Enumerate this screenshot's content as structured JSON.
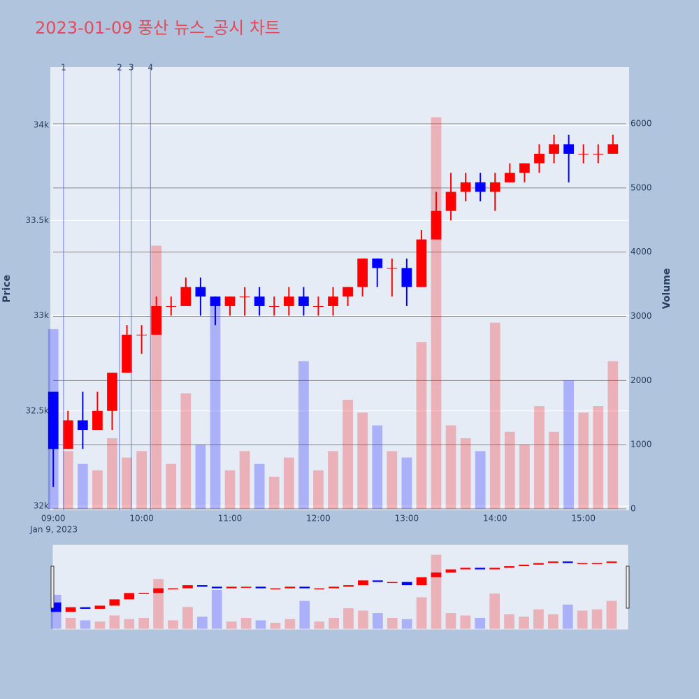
{
  "chart_data": {
    "type": "candlestick",
    "title": "2023-01-09 풍산 뉴스_공시 차트",
    "y_title": "Price",
    "y2_title": "Volume",
    "x_date_label": "Jan 9, 2023",
    "up_color": "#ff0000",
    "down_color": "#0000ff",
    "x": [
      "09:00",
      "09:10",
      "09:20",
      "09:30",
      "09:40",
      "09:50",
      "10:00",
      "10:10",
      "10:20",
      "10:30",
      "10:40",
      "10:50",
      "11:00",
      "11:10",
      "11:20",
      "11:30",
      "11:40",
      "11:50",
      "12:00",
      "12:10",
      "12:20",
      "12:30",
      "12:40",
      "12:50",
      "13:00",
      "13:10",
      "13:20",
      "13:30",
      "13:40",
      "13:50",
      "14:00",
      "14:10",
      "14:20",
      "14:30",
      "14:40",
      "14:50",
      "15:00",
      "15:10",
      "15:20"
    ],
    "open": [
      32600,
      32300,
      32450,
      32400,
      32500,
      32700,
      32900,
      32900,
      33050,
      33050,
      33150,
      33100,
      33050,
      33100,
      33100,
      33050,
      33050,
      33100,
      33050,
      33050,
      33100,
      33150,
      33300,
      33250,
      33250,
      33150,
      33400,
      33550,
      33650,
      33700,
      33650,
      33700,
      33750,
      33800,
      33850,
      33900,
      33850,
      33850,
      33850
    ],
    "high": [
      32600,
      32500,
      32600,
      32600,
      32700,
      32950,
      32950,
      33100,
      33100,
      33200,
      33200,
      33100,
      33100,
      33150,
      33150,
      33100,
      33150,
      33150,
      33100,
      33150,
      33150,
      33300,
      33300,
      33300,
      33300,
      33450,
      33650,
      33750,
      33750,
      33750,
      33750,
      33800,
      33800,
      33900,
      33950,
      33950,
      33900,
      33900,
      33950
    ],
    "low": [
      32100,
      32300,
      32300,
      32400,
      32400,
      32700,
      32800,
      32900,
      33000,
      33050,
      33000,
      32950,
      33000,
      33000,
      33000,
      33000,
      33000,
      33000,
      33000,
      33000,
      33050,
      33100,
      33150,
      33100,
      33050,
      33150,
      33400,
      33500,
      33600,
      33600,
      33550,
      33700,
      33700,
      33750,
      33800,
      33700,
      33800,
      33800,
      33850
    ],
    "close": [
      32300,
      32450,
      32400,
      32500,
      32700,
      32900,
      32900,
      33050,
      33050,
      33150,
      33100,
      33050,
      33100,
      33100,
      33050,
      33050,
      33100,
      33050,
      33050,
      33100,
      33150,
      33300,
      33250,
      33250,
      33150,
      33400,
      33550,
      33650,
      33700,
      33650,
      33700,
      33750,
      33800,
      33850,
      33900,
      33850,
      33850,
      33850,
      33900
    ],
    "volume": [
      2800,
      900,
      700,
      600,
      1100,
      800,
      900,
      4100,
      700,
      1800,
      1000,
      3200,
      600,
      900,
      700,
      500,
      800,
      2300,
      600,
      900,
      1700,
      1500,
      1300,
      900,
      800,
      2600,
      6100,
      1300,
      1100,
      900,
      2900,
      1200,
      1000,
      1600,
      1200,
      2000,
      1500,
      1600,
      2300
    ],
    "ylim": [
      31978,
      34305
    ],
    "yticks": [
      {
        "value": 32000,
        "label": "32k"
      },
      {
        "value": 32500,
        "label": "32.5k"
      },
      {
        "value": 33000,
        "label": "33k"
      },
      {
        "value": 33500,
        "label": "33.5k"
      },
      {
        "value": 34000,
        "label": "34k"
      }
    ],
    "y2lim": [
      -22,
      6882
    ],
    "y2ticks": [
      0,
      1000,
      2000,
      3000,
      4000,
      5000,
      6000
    ],
    "xlim": [
      "08:58",
      "15:31"
    ],
    "xticks": [
      "09:00",
      "10:00",
      "11:00",
      "12:00",
      "13:00",
      "14:00",
      "15:00"
    ],
    "news": [
      {
        "x": "09:07",
        "label": "1"
      },
      {
        "x": "09:45",
        "label": "2"
      },
      {
        "x": "09:53",
        "label": "3"
      },
      {
        "x": "10:06",
        "label": "4"
      }
    ]
  }
}
